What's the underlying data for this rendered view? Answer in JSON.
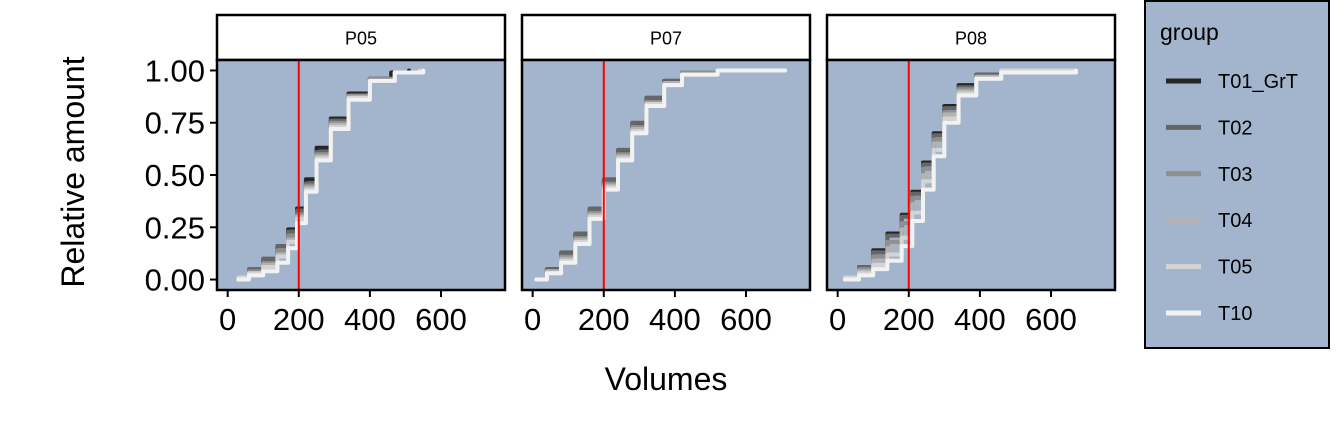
{
  "chart_data": {
    "type": "line",
    "chart_kind": "ecdf",
    "xlabel": "Volumes",
    "ylabel": "Relative amount",
    "xlim": [
      -30,
      780
    ],
    "ylim": [
      -0.05,
      1.05
    ],
    "x_ticks": [
      0,
      200,
      400,
      600
    ],
    "x_tick_labels": [
      "0",
      "200",
      "400",
      "600"
    ],
    "y_ticks": [
      0,
      0.25,
      0.5,
      0.75,
      1
    ],
    "y_tick_labels": [
      "0.00",
      "0.25",
      "0.50",
      "0.75",
      "1.00"
    ],
    "reference_line": {
      "x": 200,
      "color": "#ff0000"
    },
    "panel_background": "#a2b5cd",
    "grid": false,
    "legend": {
      "title": "group",
      "position": "right",
      "entries": [
        {
          "label": "T01_GrT",
          "color": "#262626"
        },
        {
          "label": "T02",
          "color": "#666666"
        },
        {
          "label": "T03",
          "color": "#8f8f8f"
        },
        {
          "label": "T04",
          "color": "#b3b3b3"
        },
        {
          "label": "T05",
          "color": "#d4d4d4"
        },
        {
          "label": "T10",
          "color": "#f2f2f2"
        }
      ]
    },
    "panels": [
      {
        "title": "P05",
        "series": [
          {
            "name": "T01_GrT",
            "x": [
              30,
              60,
              100,
              140,
              170,
              195,
              220,
              250,
              290,
              340,
              400,
              460,
              510
            ],
            "y": [
              0.01,
              0.04,
              0.09,
              0.16,
              0.24,
              0.34,
              0.48,
              0.63,
              0.77,
              0.89,
              0.96,
              0.99,
              1.0
            ]
          },
          {
            "name": "T02",
            "x": [
              30,
              60,
              100,
              140,
              170,
              195,
              220,
              250,
              290,
              340,
              400,
              470,
              540
            ],
            "y": [
              0.01,
              0.05,
              0.1,
              0.16,
              0.23,
              0.33,
              0.46,
              0.61,
              0.76,
              0.88,
              0.96,
              0.99,
              1.0
            ]
          },
          {
            "name": "T03",
            "x": [
              30,
              60,
              100,
              140,
              170,
              195,
              220,
              250,
              290,
              340,
              400,
              470,
              540
            ],
            "y": [
              0.01,
              0.04,
              0.08,
              0.14,
              0.21,
              0.31,
              0.45,
              0.6,
              0.75,
              0.88,
              0.96,
              0.99,
              1.0
            ]
          },
          {
            "name": "T04",
            "x": [
              30,
              60,
              100,
              140,
              170,
              195,
              220,
              250,
              290,
              340,
              400,
              470,
              540
            ],
            "y": [
              0.01,
              0.03,
              0.07,
              0.12,
              0.19,
              0.3,
              0.44,
              0.59,
              0.74,
              0.87,
              0.95,
              0.99,
              1.0
            ]
          },
          {
            "name": "T05",
            "x": [
              30,
              60,
              100,
              140,
              170,
              195,
              220,
              250,
              290,
              340,
              400,
              470,
              540
            ],
            "y": [
              0.01,
              0.03,
              0.06,
              0.11,
              0.18,
              0.29,
              0.43,
              0.58,
              0.73,
              0.87,
              0.95,
              0.99,
              1.0
            ]
          },
          {
            "name": "T10",
            "x": [
              30,
              60,
              100,
              140,
              170,
              195,
              220,
              250,
              290,
              340,
              400,
              470,
              550
            ],
            "y": [
              0.0,
              0.02,
              0.04,
              0.08,
              0.15,
              0.27,
              0.42,
              0.57,
              0.72,
              0.86,
              0.95,
              0.99,
              1.0
            ]
          }
        ]
      },
      {
        "title": "P07",
        "series": [
          {
            "name": "T01_GrT",
            "x": [
              10,
              40,
              80,
              120,
              160,
              200,
              240,
              280,
              320,
              370,
              420,
              520,
              710
            ],
            "y": [
              0.0,
              0.05,
              0.12,
              0.21,
              0.33,
              0.47,
              0.61,
              0.74,
              0.86,
              0.95,
              0.99,
              1.0,
              1.0
            ]
          },
          {
            "name": "T02",
            "x": [
              10,
              40,
              80,
              120,
              160,
              200,
              240,
              280,
              320,
              370,
              420,
              520,
              710
            ],
            "y": [
              0.0,
              0.05,
              0.13,
              0.22,
              0.34,
              0.48,
              0.62,
              0.75,
              0.87,
              0.95,
              0.99,
              1.0,
              1.0
            ]
          },
          {
            "name": "T03",
            "x": [
              10,
              40,
              80,
              120,
              160,
              200,
              240,
              280,
              320,
              370,
              420,
              520,
              710
            ],
            "y": [
              0.0,
              0.04,
              0.11,
              0.2,
              0.32,
              0.46,
              0.6,
              0.73,
              0.85,
              0.94,
              0.99,
              1.0,
              1.0
            ]
          },
          {
            "name": "T04",
            "x": [
              10,
              40,
              80,
              120,
              160,
              200,
              240,
              280,
              320,
              370,
              420,
              520,
              710
            ],
            "y": [
              0.0,
              0.04,
              0.1,
              0.19,
              0.31,
              0.45,
              0.59,
              0.72,
              0.84,
              0.94,
              0.98,
              1.0,
              1.0
            ]
          },
          {
            "name": "T05",
            "x": [
              10,
              40,
              80,
              120,
              160,
              200,
              240,
              280,
              320,
              370,
              420,
              520,
              710
            ],
            "y": [
              0.0,
              0.03,
              0.09,
              0.18,
              0.3,
              0.44,
              0.58,
              0.71,
              0.84,
              0.93,
              0.98,
              1.0,
              1.0
            ]
          },
          {
            "name": "T10",
            "x": [
              10,
              40,
              80,
              120,
              160,
              200,
              240,
              280,
              320,
              370,
              420,
              520,
              710
            ],
            "y": [
              0.0,
              0.03,
              0.08,
              0.17,
              0.29,
              0.43,
              0.57,
              0.7,
              0.83,
              0.93,
              0.98,
              1.0,
              1.0
            ]
          }
        ]
      },
      {
        "title": "P08",
        "series": [
          {
            "name": "T01_GrT",
            "x": [
              20,
              60,
              100,
              140,
              180,
              210,
              240,
              270,
              300,
              340,
              390,
              460,
              670
            ],
            "y": [
              0.01,
              0.06,
              0.14,
              0.22,
              0.31,
              0.42,
              0.56,
              0.7,
              0.83,
              0.93,
              0.98,
              1.0,
              1.0
            ]
          },
          {
            "name": "T02",
            "x": [
              20,
              60,
              100,
              140,
              180,
              210,
              240,
              270,
              300,
              340,
              390,
              460,
              670
            ],
            "y": [
              0.01,
              0.06,
              0.13,
              0.21,
              0.3,
              0.41,
              0.55,
              0.69,
              0.82,
              0.92,
              0.98,
              1.0,
              1.0
            ]
          },
          {
            "name": "T03",
            "x": [
              20,
              60,
              100,
              140,
              180,
              210,
              240,
              270,
              300,
              340,
              390,
              460,
              670
            ],
            "y": [
              0.01,
              0.05,
              0.11,
              0.18,
              0.27,
              0.39,
              0.53,
              0.67,
              0.8,
              0.91,
              0.97,
              1.0,
              1.0
            ]
          },
          {
            "name": "T04",
            "x": [
              20,
              60,
              100,
              140,
              180,
              210,
              240,
              270,
              300,
              340,
              390,
              460,
              670
            ],
            "y": [
              0.01,
              0.04,
              0.09,
              0.15,
              0.24,
              0.36,
              0.5,
              0.65,
              0.79,
              0.9,
              0.97,
              1.0,
              1.0
            ]
          },
          {
            "name": "T05",
            "x": [
              20,
              60,
              100,
              140,
              180,
              210,
              240,
              270,
              300,
              340,
              390,
              460,
              670
            ],
            "y": [
              0.01,
              0.03,
              0.07,
              0.12,
              0.2,
              0.32,
              0.47,
              0.62,
              0.77,
              0.89,
              0.96,
              1.0,
              1.0
            ]
          },
          {
            "name": "T10",
            "x": [
              20,
              60,
              100,
              140,
              180,
              210,
              240,
              270,
              300,
              340,
              390,
              460,
              670
            ],
            "y": [
              0.0,
              0.02,
              0.05,
              0.09,
              0.16,
              0.28,
              0.43,
              0.59,
              0.75,
              0.88,
              0.96,
              0.99,
              1.0
            ]
          }
        ]
      }
    ]
  }
}
